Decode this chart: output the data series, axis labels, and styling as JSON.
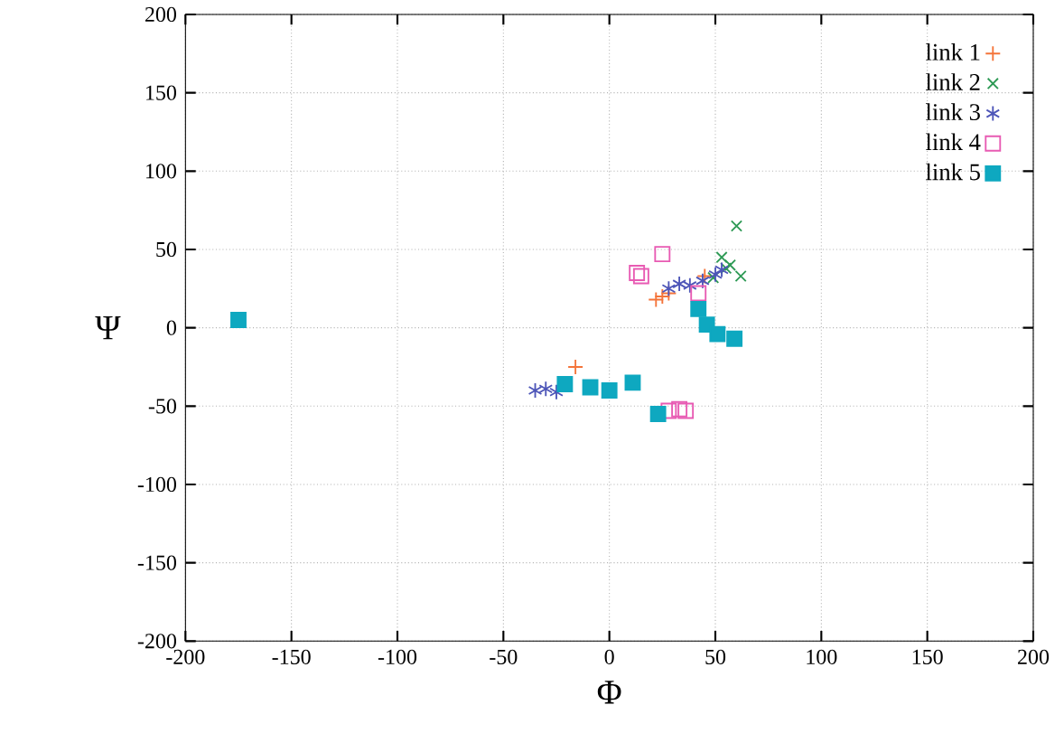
{
  "chart_data": {
    "type": "scatter",
    "xlabel": "Φ",
    "ylabel": "Ψ",
    "xlim": [
      -200,
      200
    ],
    "ylim": [
      -200,
      200
    ],
    "xticks": [
      -200,
      -150,
      -100,
      -50,
      0,
      50,
      100,
      150,
      200
    ],
    "yticks": [
      -200,
      -150,
      -100,
      -50,
      0,
      50,
      100,
      150,
      200
    ],
    "grid": true,
    "legend": "top right",
    "series": [
      {
        "name": "link 1",
        "color": "#f4743a",
        "x": [
          -16,
          22,
          25,
          28,
          45
        ],
        "values": [
          -25,
          18,
          20,
          22,
          33
        ]
      },
      {
        "name": "link 2",
        "color": "#2e9a55",
        "x": [
          60,
          53,
          62,
          57,
          49,
          55
        ],
        "values": [
          65,
          45,
          33,
          40,
          32,
          38
        ]
      },
      {
        "name": "link 3",
        "color": "#4d55b8",
        "x": [
          -35,
          -30,
          -25,
          -22,
          28,
          33,
          38,
          44,
          50,
          53
        ],
        "values": [
          -40,
          -39,
          -41,
          null,
          25,
          28,
          27,
          30,
          34,
          37
        ]
      },
      {
        "name": "link 4",
        "color": "#e85bb3",
        "x": [
          13,
          15,
          25,
          42,
          28,
          33,
          36
        ],
        "values": [
          35,
          33,
          47,
          22,
          -53,
          -52,
          -53
        ]
      },
      {
        "name": "link 5",
        "color": "#0ea8c0",
        "x": [
          -175,
          -21,
          -9,
          0,
          11,
          23,
          42,
          46,
          51,
          59
        ],
        "values": [
          5,
          -36,
          -38,
          -40,
          -35,
          -55,
          12,
          2,
          -4,
          -7
        ]
      }
    ]
  }
}
